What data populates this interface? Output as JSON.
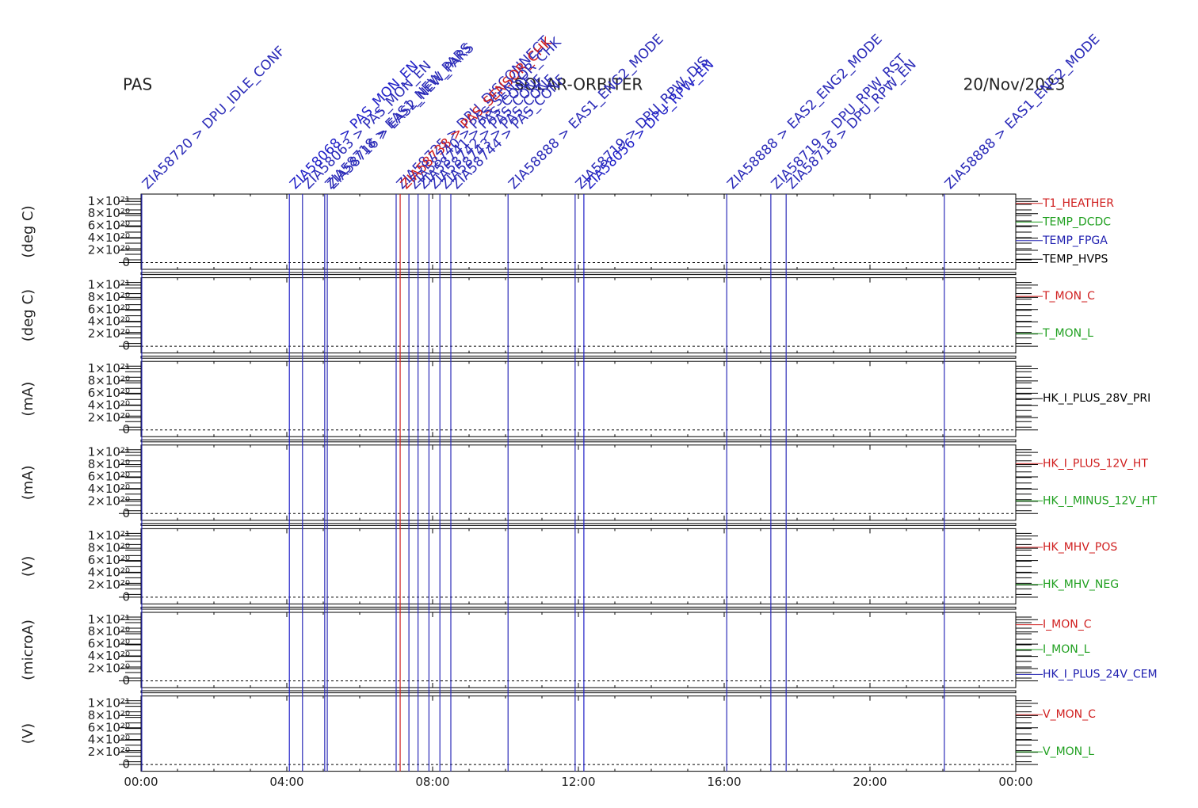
{
  "header": {
    "left": "PAS",
    "center": "SOLAR-ORBITER",
    "right": "20/Nov/2023"
  },
  "x_axis": {
    "xlim": [
      0,
      24
    ],
    "xticks": [
      {
        "value": 0,
        "label": "00:00"
      },
      {
        "value": 4,
        "label": "04:00"
      },
      {
        "value": 8,
        "label": "08:00"
      },
      {
        "value": 12,
        "label": "12:00"
      },
      {
        "value": 16,
        "label": "16:00"
      },
      {
        "value": 20,
        "label": "20:00"
      },
      {
        "value": 24,
        "label": "00:00"
      }
    ]
  },
  "events": [
    {
      "x": 0.02,
      "label": "ZIA58720 > DPU_IDLE_CONF",
      "color": "#2b2bb8"
    },
    {
      "x": 4.07,
      "label": "ZIA58068 > PAS_MON_EN",
      "color": "#1f1fc8"
    },
    {
      "x": 4.43,
      "label": "ZIA58063 > PAS_MON_EN",
      "color": "#2b2bb8"
    },
    {
      "x": 5.04,
      "label": "ZIA58718 > EAS1_NEW_PARS",
      "color": "#2b2bb8"
    },
    {
      "x": 5.11,
      "label": "ZIA58716 > EAS2_NEW_PARS",
      "color": "#2b2bb8"
    },
    {
      "x": 7.0,
      "label": "ZIA58725 > DPU_DISCONNECT",
      "color": "#2b2bb8"
    },
    {
      "x": 7.11,
      "label": "ZIA58738 > PAS_SENSOR_CHK",
      "color": "#d02020"
    },
    {
      "x": 7.35,
      "label": "ZIA58740 > PAS_SENSOR_CHK",
      "color": "#2b2bb8"
    },
    {
      "x": 7.6,
      "label": "ZIA58741 > PAS_CONF",
      "color": "#2b2bb8"
    },
    {
      "x": 7.9,
      "label": "ZIA58742 > PAS_CONF",
      "color": "#2b2bb8"
    },
    {
      "x": 8.2,
      "label": "ZIA58743 > PAS_CONF",
      "color": "#2b2bb8"
    },
    {
      "x": 8.5,
      "label": "ZIA58744 > PAS_CONF",
      "color": "#2b2bb8"
    },
    {
      "x": 10.07,
      "label": "ZIA58888 > EAS1_ENG2_MODE",
      "color": "#2b2bb8"
    },
    {
      "x": 11.91,
      "label": "ZIA58719 > DPU_RPW_DIS",
      "color": "#2b2bb8"
    },
    {
      "x": 12.15,
      "label": "ZIA58056 > DPU_RPW_EN",
      "color": "#1f1fc8"
    },
    {
      "x": 16.07,
      "label": "ZIA58888 > EAS2_ENG2_MODE",
      "color": "#2b2bb8"
    },
    {
      "x": 17.28,
      "label": "ZIA58719 > DPU_RPW_RST",
      "color": "#2b2bb8"
    },
    {
      "x": 17.7,
      "label": "ZIA58718 > DPU_RPW_EN",
      "color": "#2b2bb8"
    },
    {
      "x": 22.04,
      "label": "ZIA58888 > EAS1_ENG2_MODE",
      "color": "#2b2bb8"
    }
  ],
  "chart_data": [
    {
      "type": "line",
      "y_label": "(deg C)",
      "ylim": [
        -1.1e+20,
        1.12e+21
      ],
      "yticks": [
        0,
        {
          "value": 2e+20,
          "label": "2×10²⁰"
        },
        {
          "value": 4e+20,
          "label": "4×10²⁰"
        },
        {
          "value": 6e+20,
          "label": "6×10²⁰"
        },
        {
          "value": 8e+20,
          "label": "8×10²⁰"
        },
        {
          "value": 1e+21,
          "label": "1×10²¹"
        }
      ],
      "series": [
        {
          "name": "T1_HEATHER",
          "color": "#d02020"
        },
        {
          "name": "TEMP_DCDC",
          "color": "#20a020"
        },
        {
          "name": "TEMP_FPGA",
          "color": "#2020b0"
        },
        {
          "name": "TEMP_HVPS",
          "color": "#000000"
        }
      ]
    },
    {
      "type": "line",
      "y_label": "(deg C)",
      "ylim": [
        -1.1e+20,
        1.12e+21
      ],
      "yticks": [
        0,
        {
          "value": 2e+20,
          "label": "2×10²⁰"
        },
        {
          "value": 4e+20,
          "label": "4×10²⁰"
        },
        {
          "value": 6e+20,
          "label": "6×10²⁰"
        },
        {
          "value": 8e+20,
          "label": "8×10²⁰"
        },
        {
          "value": 1e+21,
          "label": "1×10²¹"
        }
      ],
      "series": [
        {
          "name": "T_MON_C",
          "color": "#d02020"
        },
        {
          "name": "T_MON_L",
          "color": "#20a020"
        }
      ]
    },
    {
      "type": "line",
      "y_label": "(mA)",
      "ylim": [
        -1.1e+20,
        1.12e+21
      ],
      "yticks": [
        0,
        {
          "value": 2e+20,
          "label": "2×10²⁰"
        },
        {
          "value": 4e+20,
          "label": "4×10²⁰"
        },
        {
          "value": 6e+20,
          "label": "6×10²⁰"
        },
        {
          "value": 8e+20,
          "label": "8×10²⁰"
        },
        {
          "value": 1e+21,
          "label": "1×10²¹"
        }
      ],
      "series": [
        {
          "name": "HK_I_PLUS_28V_PRI",
          "color": "#000000"
        }
      ]
    },
    {
      "type": "line",
      "y_label": "(mA)",
      "ylim": [
        -1.1e+20,
        1.12e+21
      ],
      "yticks": [
        0,
        {
          "value": 2e+20,
          "label": "2×10²⁰"
        },
        {
          "value": 4e+20,
          "label": "4×10²⁰"
        },
        {
          "value": 6e+20,
          "label": "6×10²⁰"
        },
        {
          "value": 8e+20,
          "label": "8×10²⁰"
        },
        {
          "value": 1e+21,
          "label": "1×10²¹"
        }
      ],
      "series": [
        {
          "name": "HK_I_PLUS_12V_HT",
          "color": "#d02020"
        },
        {
          "name": "HK_I_MINUS_12V_HT",
          "color": "#20a020"
        }
      ]
    },
    {
      "type": "line",
      "y_label": "(V)",
      "ylim": [
        -1.1e+20,
        1.12e+21
      ],
      "yticks": [
        0,
        {
          "value": 2e+20,
          "label": "2×10²⁰"
        },
        {
          "value": 4e+20,
          "label": "4×10²⁰"
        },
        {
          "value": 6e+20,
          "label": "6×10²⁰"
        },
        {
          "value": 8e+20,
          "label": "8×10²⁰"
        },
        {
          "value": 1e+21,
          "label": "1×10²¹"
        }
      ],
      "series": [
        {
          "name": "HK_MHV_POS",
          "color": "#d02020"
        },
        {
          "name": "HK_MHV_NEG",
          "color": "#20a020"
        }
      ]
    },
    {
      "type": "line",
      "y_label": "(microA)",
      "ylim": [
        -1.1e+20,
        1.12e+21
      ],
      "yticks": [
        0,
        {
          "value": 2e+20,
          "label": "2×10²⁰"
        },
        {
          "value": 4e+20,
          "label": "4×10²⁰"
        },
        {
          "value": 6e+20,
          "label": "6×10²⁰"
        },
        {
          "value": 8e+20,
          "label": "8×10²⁰"
        },
        {
          "value": 1e+21,
          "label": "1×10²¹"
        }
      ],
      "series": [
        {
          "name": "I_MON_C",
          "color": "#d02020"
        },
        {
          "name": "I_MON_L",
          "color": "#20a020"
        },
        {
          "name": "HK_I_PLUS_24V_CEM",
          "color": "#2020b0"
        }
      ]
    },
    {
      "type": "line",
      "y_label": "(V)",
      "ylim": [
        -1.1e+20,
        1.12e+21
      ],
      "yticks": [
        0,
        {
          "value": 2e+20,
          "label": "2×10²⁰"
        },
        {
          "value": 4e+20,
          "label": "4×10²⁰"
        },
        {
          "value": 6e+20,
          "label": "6×10²⁰"
        },
        {
          "value": 8e+20,
          "label": "8×10²⁰"
        },
        {
          "value": 1e+21,
          "label": "1×10²¹"
        }
      ],
      "series": [
        {
          "name": "V_MON_C",
          "color": "#d02020"
        },
        {
          "name": "V_MON_L",
          "color": "#20a020"
        }
      ]
    }
  ]
}
